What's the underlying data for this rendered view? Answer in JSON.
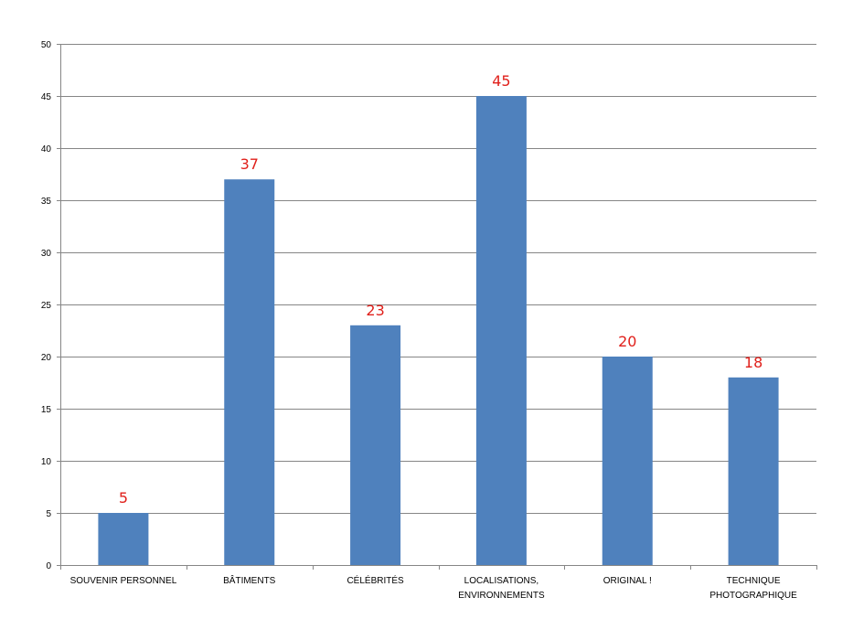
{
  "chart_data": {
    "type": "bar",
    "title": "",
    "xlabel": "",
    "ylabel": "",
    "categories": [
      [
        "SOUVENIR PERSONNEL"
      ],
      [
        "BÂTIMENTS"
      ],
      [
        "CÉLÉBRITÉS"
      ],
      [
        "LOCALISATIONS,",
        "ENVIRONNEMENTS"
      ],
      [
        "ORIGINAL !"
      ],
      [
        "TECHNIQUE",
        "PHOTOGRAPHIQUE"
      ]
    ],
    "values": [
      5,
      37,
      23,
      45,
      20,
      18
    ],
    "ylim": [
      0,
      50
    ],
    "yticks": [
      0,
      5,
      10,
      15,
      20,
      25,
      30,
      35,
      40,
      45,
      50
    ],
    "grid": true,
    "legend": "none",
    "colors": {
      "bar": "#4F81BD",
      "data_label": "#E0201B",
      "grid": "#868686",
      "axis": "#868686"
    }
  }
}
